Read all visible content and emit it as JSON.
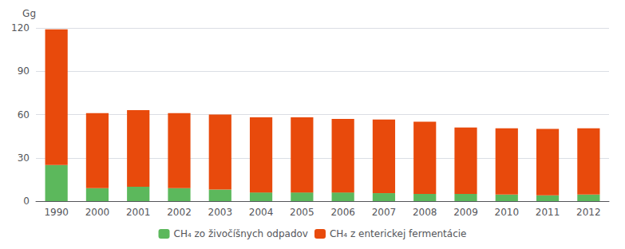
{
  "chart_data": {
    "type": "bar",
    "stacked": true,
    "ylabel": "Gg",
    "categories": [
      "1990",
      "2000",
      "2001",
      "2002",
      "2003",
      "2004",
      "2005",
      "2006",
      "2007",
      "2008",
      "2009",
      "2010",
      "2011",
      "2012"
    ],
    "series": [
      {
        "name": "CH₄ zo živočíšnych odpadov",
        "color": "#5cb85c",
        "values": [
          25,
          9,
          10,
          9,
          8,
          6,
          6,
          6,
          5.5,
          5,
          5,
          4.5,
          4,
          4.5
        ]
      },
      {
        "name": "CH₄ z enterickej fermentácie",
        "color": "#e84a0c",
        "values": [
          94,
          52,
          53,
          52,
          52,
          52,
          52,
          51,
          51,
          50,
          46,
          46,
          46,
          46
        ]
      }
    ],
    "ylim": [
      0,
      120
    ],
    "yticks": [
      0,
      30,
      60,
      90,
      120
    ],
    "grid": true,
    "legend": "bottom"
  }
}
